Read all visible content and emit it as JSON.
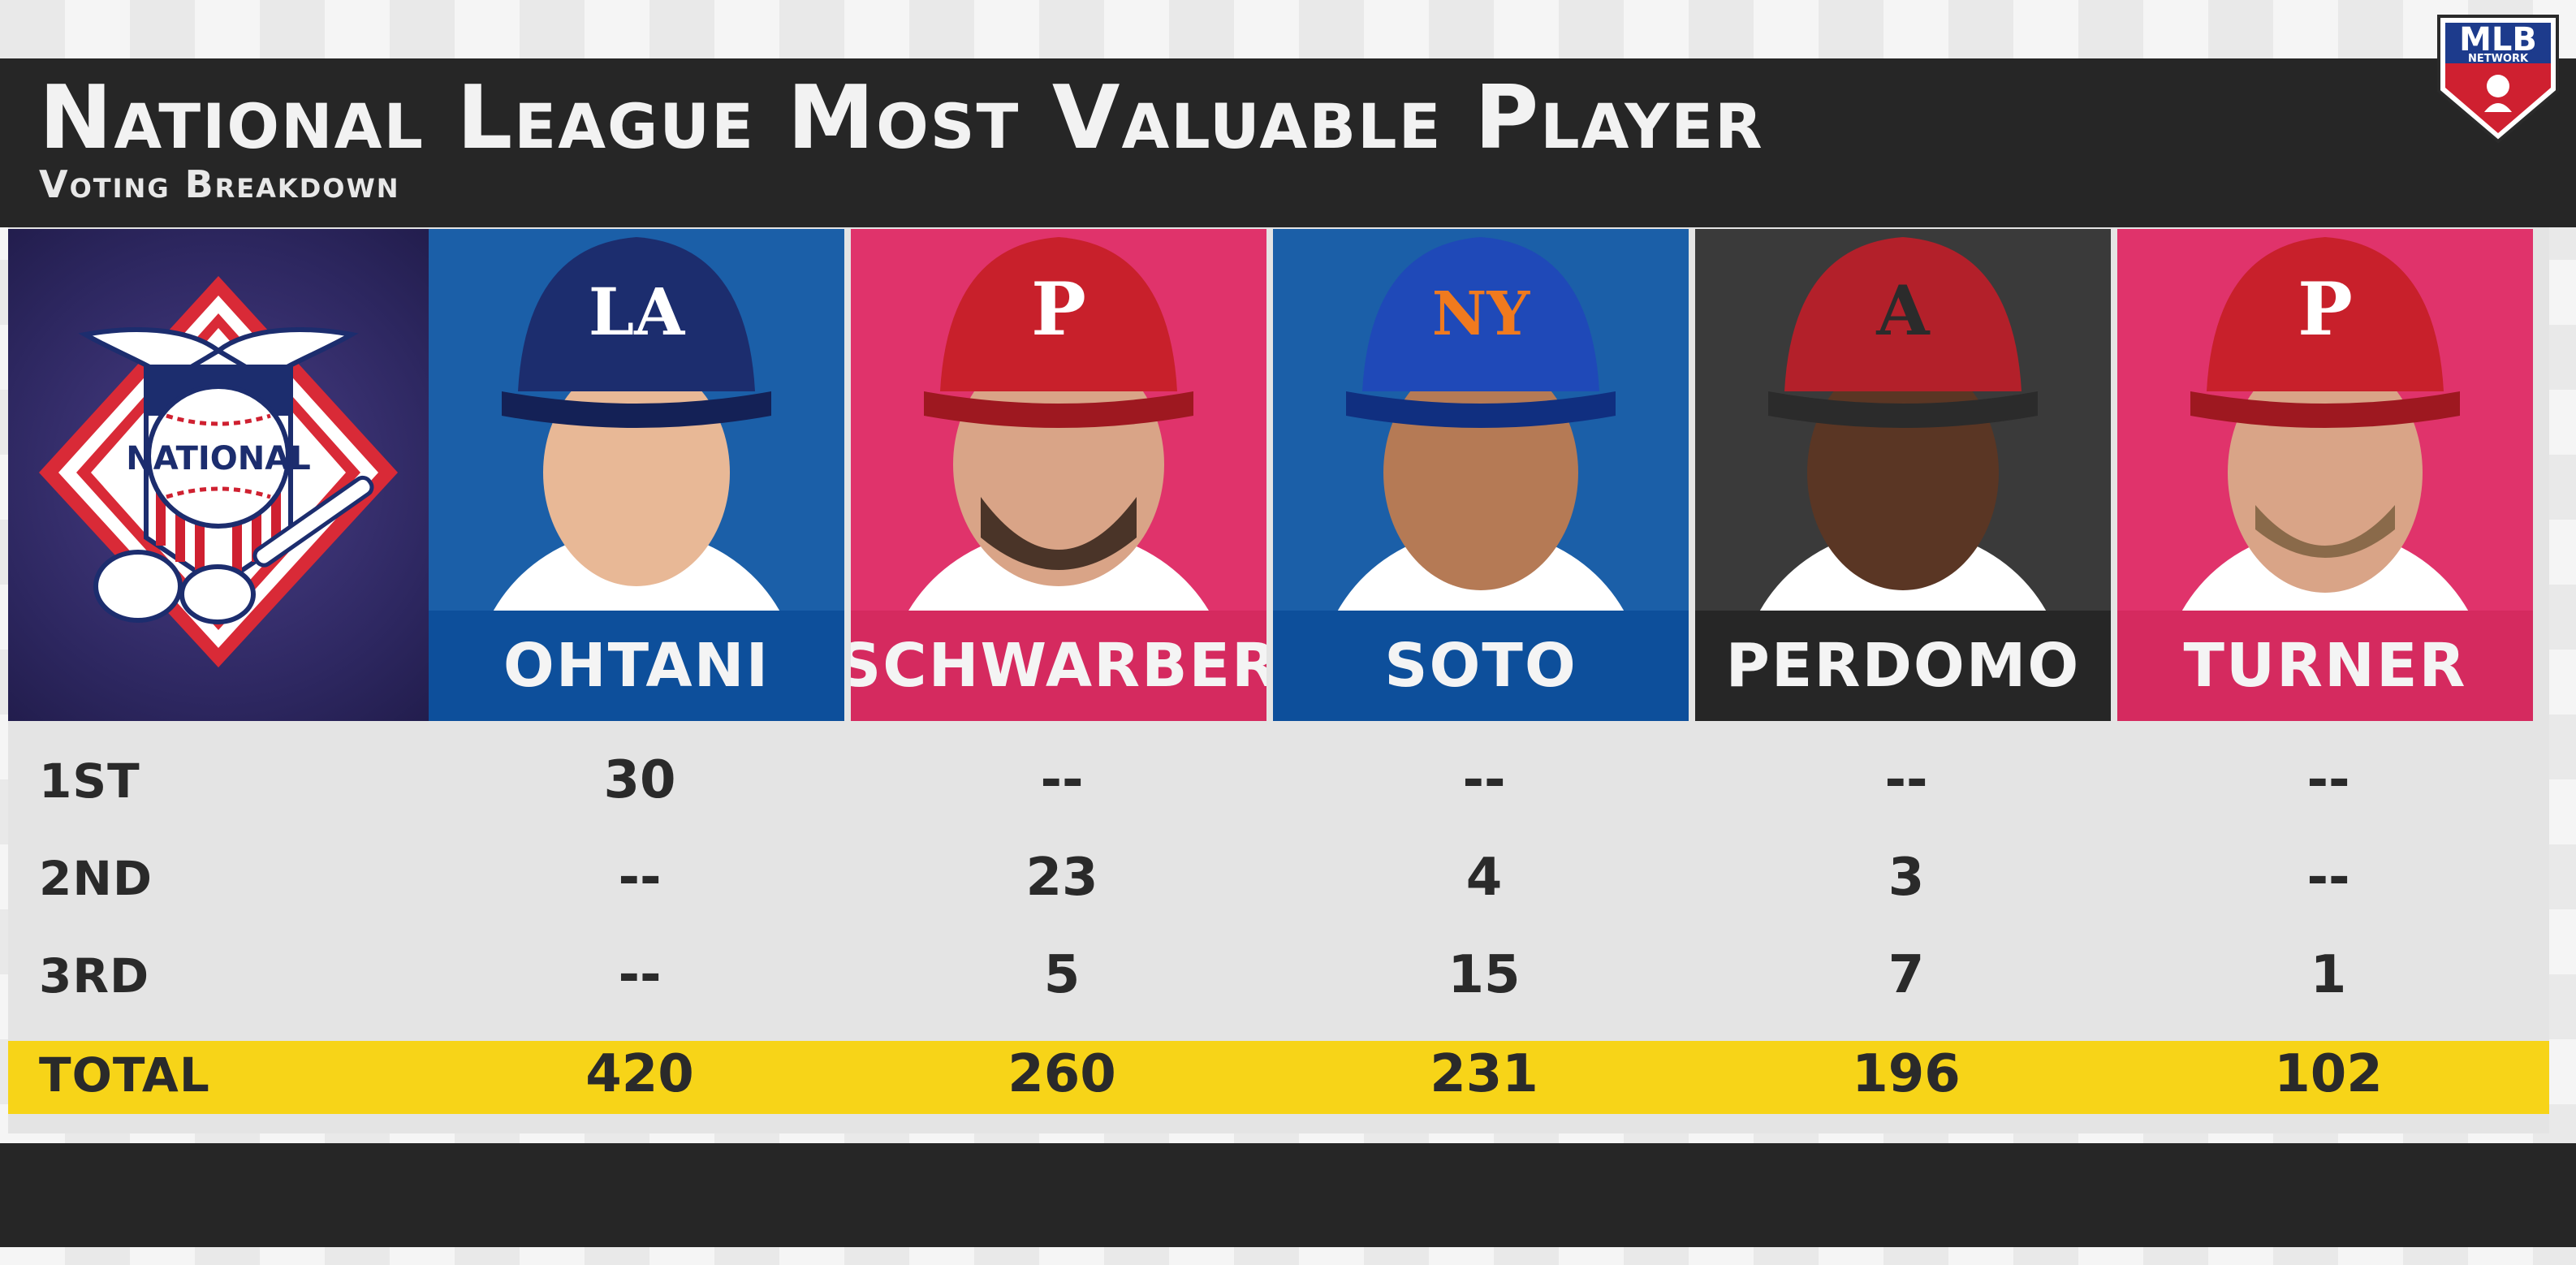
{
  "header": {
    "title": "National League Most Valuable Player",
    "subtitle": "Voting Breakdown",
    "network_logo_text": "MLB",
    "network_logo_sub": "NETWORK"
  },
  "league_logo_text": "NATIONAL",
  "players": [
    {
      "name": "OHTANI",
      "team_icon": "dodgers-la-cap-icon",
      "bg": "#1b5fa8",
      "bar": "#0d4f9b",
      "cap": "#1c2d6e",
      "cap_letter": "LA",
      "cap_letter_color": "#ffffff"
    },
    {
      "name": "SCHWARBER",
      "team_icon": "phillies-p-cap-icon",
      "bg": "#e0336b",
      "bar": "#d52a5f",
      "cap": "#c8202b",
      "cap_letter": "P",
      "cap_letter_color": "#ffffff"
    },
    {
      "name": "SOTO",
      "team_icon": "mets-ny-cap-icon",
      "bg": "#1b5fa8",
      "bar": "#0d4f9b",
      "cap": "#1f49b8",
      "cap_letter": "NY",
      "cap_letter_color": "#f07a1e"
    },
    {
      "name": "PERDOMO",
      "team_icon": "diamondbacks-a-cap-icon",
      "bg": "#3a3a3a",
      "bar": "#262626",
      "cap": "#b3202a",
      "cap_letter": "A",
      "cap_letter_color": "#2b2b2b"
    },
    {
      "name": "TURNER",
      "team_icon": "phillies-p-cap-icon",
      "bg": "#e0336b",
      "bar": "#d52a5f",
      "cap": "#c8202b",
      "cap_letter": "P",
      "cap_letter_color": "#ffffff"
    }
  ],
  "rows": [
    {
      "label": "1ST",
      "values": [
        "30",
        "--",
        "--",
        "--",
        "--"
      ]
    },
    {
      "label": "2ND",
      "values": [
        "--",
        "23",
        "4",
        "3",
        "--"
      ]
    },
    {
      "label": "3RD",
      "values": [
        "--",
        "5",
        "15",
        "7",
        "1"
      ]
    },
    {
      "label": "TOTAL",
      "values": [
        "420",
        "260",
        "231",
        "196",
        "102"
      ]
    }
  ],
  "colors": {
    "header_bg": "#262626",
    "total_bar": "#f7d418",
    "text_dark": "#2a2a2a"
  }
}
